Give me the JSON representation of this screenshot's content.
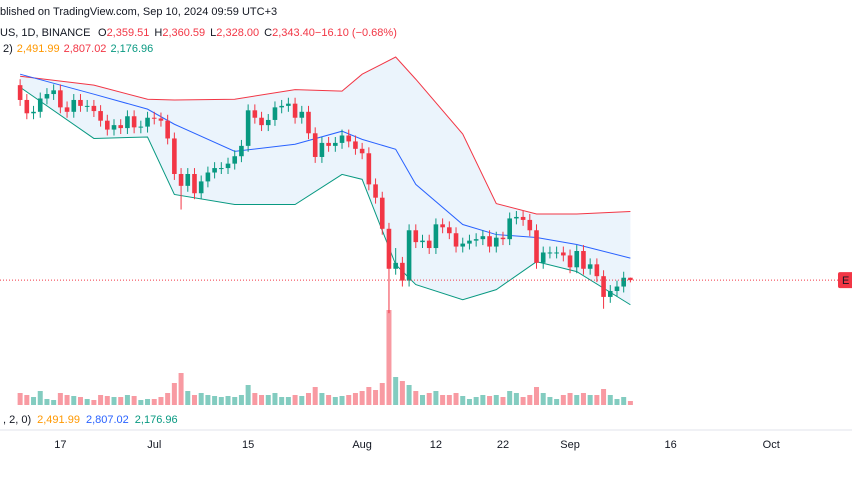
{
  "chart_data": {
    "type": "candlestick",
    "header": {
      "title": "blished on TradingView.com, Sep 10, 2024 09:59 UTC+3",
      "symbol": "US, 1D, BINANCE",
      "ohlc": [
        "O",
        "2,359.51",
        "H",
        "2,360.59",
        "L",
        "2,328.00",
        "C",
        "2,343.40",
        "−16.10 (−0.68%)"
      ],
      "bb_label": "2)",
      "bb_values": [
        "2,491.99",
        "2,807.02",
        "2,176.96"
      ],
      "bottom_label": ", 2, 0)",
      "bottom_values": [
        "2,491.99",
        "2,807.02",
        "2,176.96"
      ]
    },
    "price_tag": "E",
    "up_color": "#089981",
    "down_color": "#f23645",
    "band_fill": "#e3f0fb",
    "xlim": [
      "2024-06-08",
      "2024-10-12"
    ],
    "ylim": [
      1500,
      4100
    ],
    "volume_ylim": [
      0,
      100
    ],
    "xticks": [
      {
        "value": "2024-06-17",
        "label": "17"
      },
      {
        "value": "2024-07-01",
        "label": "Jul"
      },
      {
        "value": "2024-07-15",
        "label": "15"
      },
      {
        "value": "2024-08-01",
        "label": "Aug"
      },
      {
        "value": "2024-08-12",
        "label": "12"
      },
      {
        "value": "2024-08-22",
        "label": "22"
      },
      {
        "value": "2024-09-01",
        "label": "Sep"
      },
      {
        "value": "2024-09-16",
        "label": "16"
      },
      {
        "value": "2024-10-01",
        "label": "Oct"
      }
    ],
    "x": [
      "2024-06-11",
      "2024-06-12",
      "2024-06-13",
      "2024-06-14",
      "2024-06-15",
      "2024-06-16",
      "2024-06-17",
      "2024-06-18",
      "2024-06-19",
      "2024-06-20",
      "2024-06-21",
      "2024-06-22",
      "2024-06-23",
      "2024-06-24",
      "2024-06-25",
      "2024-06-26",
      "2024-06-27",
      "2024-06-28",
      "2024-06-29",
      "2024-06-30",
      "2024-07-01",
      "2024-07-02",
      "2024-07-03",
      "2024-07-04",
      "2024-07-05",
      "2024-07-06",
      "2024-07-07",
      "2024-07-08",
      "2024-07-09",
      "2024-07-10",
      "2024-07-11",
      "2024-07-12",
      "2024-07-13",
      "2024-07-14",
      "2024-07-15",
      "2024-07-16",
      "2024-07-17",
      "2024-07-18",
      "2024-07-19",
      "2024-07-20",
      "2024-07-21",
      "2024-07-22",
      "2024-07-23",
      "2024-07-24",
      "2024-07-25",
      "2024-07-26",
      "2024-07-27",
      "2024-07-28",
      "2024-07-29",
      "2024-07-30",
      "2024-07-31",
      "2024-08-01",
      "2024-08-02",
      "2024-08-03",
      "2024-08-04",
      "2024-08-05",
      "2024-08-06",
      "2024-08-07",
      "2024-08-08",
      "2024-08-09",
      "2024-08-10",
      "2024-08-11",
      "2024-08-12",
      "2024-08-13",
      "2024-08-14",
      "2024-08-15",
      "2024-08-16",
      "2024-08-17",
      "2024-08-18",
      "2024-08-19",
      "2024-08-20",
      "2024-08-21",
      "2024-08-22",
      "2024-08-23",
      "2024-08-24",
      "2024-08-25",
      "2024-08-26",
      "2024-08-27",
      "2024-08-28",
      "2024-08-29",
      "2024-08-30",
      "2024-08-31",
      "2024-09-01",
      "2024-09-02",
      "2024-09-03",
      "2024-09-04",
      "2024-09-05",
      "2024-09-06",
      "2024-09-07",
      "2024-09-08",
      "2024-09-09",
      "2024-09-10"
    ],
    "open": [
      3660,
      3560,
      3470,
      3480,
      3570,
      3600,
      3625,
      3510,
      3480,
      3560,
      3520,
      3520,
      3485,
      3420,
      3360,
      3390,
      3370,
      3450,
      3375,
      3380,
      3440,
      3435,
      3420,
      3300,
      3060,
      2980,
      3060,
      2930,
      3010,
      3070,
      3100,
      3100,
      3130,
      3180,
      3250,
      3490,
      3440,
      3390,
      3425,
      3510,
      3520,
      3535,
      3440,
      3480,
      3335,
      3175,
      3270,
      3250,
      3270,
      3320,
      3280,
      3230,
      3200,
      2990,
      2900,
      2690,
      2420,
      2460,
      2340,
      2680,
      2600,
      2610,
      2560,
      2720,
      2700,
      2660,
      2570,
      2590,
      2610,
      2620,
      2640,
      2570,
      2630,
      2620,
      2760,
      2770,
      2750,
      2680,
      2460,
      2530,
      2530,
      2530,
      2510,
      2430,
      2540,
      2420,
      2450,
      2370,
      2230,
      2270,
      2300,
      2359.51
    ],
    "high": [
      3700,
      3600,
      3520,
      3610,
      3640,
      3665,
      3665,
      3550,
      3600,
      3600,
      3560,
      3560,
      3525,
      3460,
      3430,
      3430,
      3490,
      3490,
      3420,
      3480,
      3480,
      3475,
      3460,
      3340,
      3100,
      3100,
      3100,
      3050,
      3110,
      3140,
      3140,
      3170,
      3220,
      3290,
      3530,
      3530,
      3480,
      3465,
      3550,
      3560,
      3575,
      3575,
      3520,
      3520,
      3375,
      3310,
      3310,
      3310,
      3360,
      3360,
      3320,
      3270,
      3240,
      3030,
      2940,
      2730,
      2560,
      2500,
      2720,
      2720,
      2650,
      2650,
      2760,
      2760,
      2740,
      2700,
      2630,
      2650,
      2660,
      2680,
      2680,
      2670,
      2670,
      2800,
      2810,
      2810,
      2790,
      2720,
      2570,
      2570,
      2570,
      2570,
      2550,
      2580,
      2580,
      2490,
      2490,
      2410,
      2310,
      2340,
      2400,
      2360.59
    ],
    "low": [
      3520,
      3430,
      3430,
      3440,
      3530,
      3560,
      3470,
      3440,
      3440,
      3480,
      3480,
      3445,
      3380,
      3320,
      3320,
      3330,
      3330,
      3335,
      3335,
      3340,
      3395,
      3380,
      3260,
      3020,
      2820,
      2940,
      2890,
      2890,
      2970,
      3030,
      3060,
      3060,
      3090,
      3140,
      3210,
      3400,
      3350,
      3350,
      3385,
      3470,
      3480,
      3400,
      3400,
      3295,
      3135,
      3135,
      3210,
      3210,
      3230,
      3240,
      3190,
      3160,
      2950,
      2860,
      2650,
      2120,
      2380,
      2300,
      2300,
      2560,
      2560,
      2520,
      2520,
      2660,
      2620,
      2530,
      2530,
      2550,
      2570,
      2580,
      2530,
      2530,
      2580,
      2580,
      2720,
      2710,
      2640,
      2420,
      2420,
      2490,
      2490,
      2470,
      2390,
      2390,
      2380,
      2380,
      2330,
      2150,
      2190,
      2230,
      2260,
      2328
    ],
    "close": [
      3560,
      3470,
      3480,
      3570,
      3600,
      3625,
      3510,
      3480,
      3560,
      3520,
      3520,
      3485,
      3420,
      3360,
      3390,
      3370,
      3450,
      3375,
      3380,
      3440,
      3435,
      3420,
      3300,
      3060,
      2980,
      3060,
      2930,
      3010,
      3070,
      3100,
      3100,
      3130,
      3180,
      3250,
      3490,
      3440,
      3390,
      3425,
      3510,
      3520,
      3535,
      3440,
      3480,
      3335,
      3175,
      3270,
      3250,
      3270,
      3320,
      3280,
      3230,
      3200,
      2990,
      2900,
      2690,
      2420,
      2460,
      2340,
      2680,
      2600,
      2610,
      2560,
      2720,
      2700,
      2660,
      2570,
      2590,
      2610,
      2620,
      2640,
      2570,
      2630,
      2620,
      2760,
      2770,
      2750,
      2680,
      2460,
      2530,
      2530,
      2530,
      2510,
      2430,
      2540,
      2420,
      2450,
      2370,
      2230,
      2270,
      2300,
      2359.51,
      2343.4
    ],
    "volume": [
      12,
      10,
      8,
      14,
      6,
      5,
      12,
      10,
      9,
      8,
      6,
      5,
      10,
      9,
      8,
      8,
      10,
      9,
      5,
      6,
      6,
      8,
      12,
      22,
      32,
      14,
      10,
      12,
      10,
      9,
      8,
      9,
      8,
      10,
      20,
      12,
      10,
      10,
      12,
      8,
      8,
      10,
      9,
      12,
      18,
      12,
      10,
      8,
      9,
      10,
      12,
      14,
      18,
      15,
      22,
      95,
      28,
      24,
      20,
      14,
      10,
      12,
      14,
      10,
      10,
      12,
      9,
      6,
      8,
      10,
      9,
      10,
      8,
      14,
      12,
      8,
      10,
      18,
      12,
      8,
      6,
      10,
      12,
      10,
      12,
      10,
      10,
      16,
      10,
      6,
      8,
      4
    ],
    "bands": {
      "x": [
        "2024-06-11",
        "2024-06-22",
        "2024-06-30",
        "2024-07-04",
        "2024-07-13",
        "2024-07-22",
        "2024-07-29",
        "2024-08-01",
        "2024-08-06",
        "2024-08-09",
        "2024-08-16",
        "2024-08-21",
        "2024-08-27",
        "2024-09-02",
        "2024-09-10"
      ],
      "upper": {
        "color": "#f23645",
        "values": [
          3720,
          3660,
          3565,
          3560,
          3565,
          3630,
          3620,
          3734,
          3850,
          3700,
          3330,
          2860,
          2790,
          2790,
          2807.02
        ]
      },
      "middle": {
        "color": "#2962ff",
        "values": [
          3734,
          3599,
          3498,
          3396,
          3213,
          3261,
          3349,
          3294,
          3227,
          2990,
          2719,
          2651,
          2631,
          2584,
          2491.99
        ]
      },
      "lower": {
        "color": "#089981",
        "values": [
          3646,
          3300,
          3310,
          2922,
          2854,
          2854,
          3057,
          3024,
          2448,
          2313,
          2211,
          2279,
          2468,
          2401,
          2176.96
        ]
      }
    }
  }
}
